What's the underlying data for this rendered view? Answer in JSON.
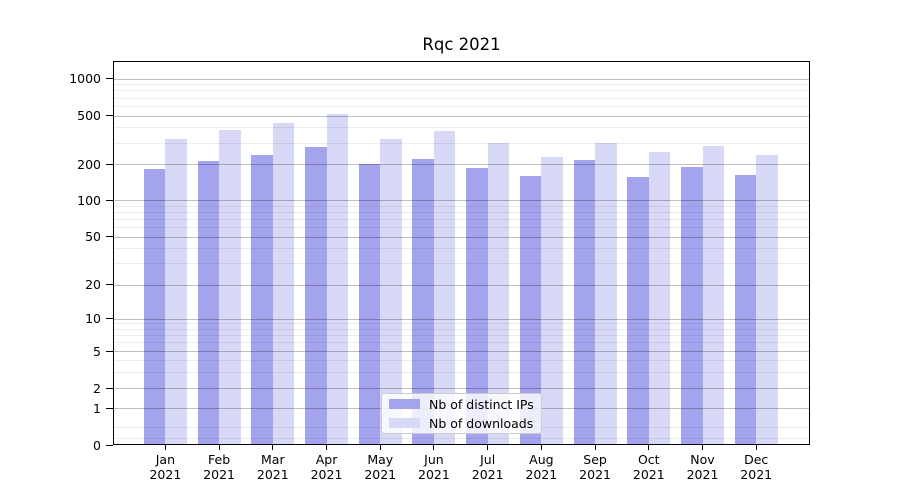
{
  "title": "Rqc 2021",
  "chart_data": {
    "type": "bar",
    "title": "Rqc 2021",
    "categories": [
      "Jan",
      "Feb",
      "Mar",
      "Apr",
      "May",
      "Jun",
      "Jul",
      "Aug",
      "Sep",
      "Oct",
      "Nov",
      "Dec"
    ],
    "category_year": "2021",
    "series": [
      {
        "name": "Nb of distinct IPs",
        "color": "#a3a3ee",
        "values": [
          180,
          212,
          235,
          278,
          200,
          220,
          185,
          160,
          215,
          157,
          190,
          163
        ]
      },
      {
        "name": "Nb of downloads",
        "color": "#d8d8f7",
        "values": [
          320,
          380,
          435,
          510,
          320,
          375,
          295,
          230,
          300,
          250,
          280,
          235
        ]
      }
    ],
    "xlabel": "",
    "ylabel": "",
    "yscale": "symlog",
    "ylim": [
      0,
      1000
    ],
    "yticks": [
      1000,
      500,
      200,
      100,
      50,
      20,
      10,
      5,
      2,
      1,
      0
    ],
    "ytick_labels": [
      "1000",
      "500",
      "200",
      "100",
      "50",
      "20",
      "10",
      "5",
      "2",
      "1",
      "0"
    ],
    "minor_tick_values": [
      0.2,
      0.5,
      3,
      4,
      6,
      7,
      8,
      9,
      30,
      40,
      60,
      70,
      80,
      90,
      300,
      400,
      600,
      700,
      800,
      900
    ],
    "grid": "both",
    "legend_position": "lower center",
    "legend_items": [
      "Nb of distinct IPs",
      "Nb of downloads"
    ]
  },
  "colors": {
    "bar_distinct_ips": "#a3a3ee",
    "bar_downloads": "#d8d8f7",
    "major_grid": "rgba(0,0,0,0.25)",
    "minor_grid": "rgba(0,0,0,0.07)",
    "spine": "#000000",
    "legend_border": "#cccccc"
  }
}
